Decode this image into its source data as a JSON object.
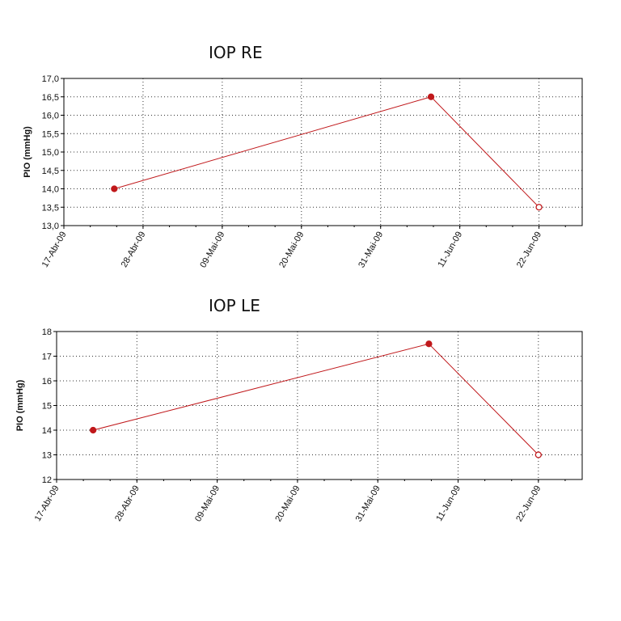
{
  "chart_data": [
    {
      "type": "line",
      "title": "IOP RE",
      "xlabel": "",
      "ylabel": "PIO (mmHg)",
      "ylim": [
        13.0,
        17.0
      ],
      "yticks": [
        "13,0",
        "13,5",
        "14,0",
        "14,5",
        "15,0",
        "15,5",
        "16,0",
        "16,5",
        "17,0"
      ],
      "xlim": [
        "2009-04-17",
        "2009-06-28"
      ],
      "xticks": [
        {
          "date": "2009-04-17",
          "label": "17-Abr-09"
        },
        {
          "date": "2009-04-28",
          "label": "28-Abr-09"
        },
        {
          "date": "2009-05-09",
          "label": "09-Mai-09"
        },
        {
          "date": "2009-05-20",
          "label": "20-Mai-09"
        },
        {
          "date": "2009-05-31",
          "label": "31-Mai-09"
        },
        {
          "date": "2009-06-11",
          "label": "11-Jun-09"
        },
        {
          "date": "2009-06-22",
          "label": "22-Jun-09"
        }
      ],
      "grid": true,
      "series": [
        {
          "color": "#c0181b",
          "points": [
            {
              "x": "2009-04-24",
              "y": 14.0,
              "filled": true
            },
            {
              "x": "2009-06-07",
              "y": 16.5,
              "filled": true
            },
            {
              "x": "2009-06-22",
              "y": 13.5,
              "filled": false
            }
          ]
        }
      ]
    },
    {
      "type": "line",
      "title": "IOP LE",
      "xlabel": "",
      "ylabel": "PIO (mmHg)",
      "ylim": [
        12,
        18
      ],
      "yticks": [
        "12",
        "13",
        "14",
        "15",
        "16",
        "17",
        "18"
      ],
      "xlim": [
        "2009-04-17",
        "2009-06-28"
      ],
      "xticks": [
        {
          "date": "2009-04-17",
          "label": "17-Abr-09"
        },
        {
          "date": "2009-04-28",
          "label": "28-Abr-09"
        },
        {
          "date": "2009-05-09",
          "label": "09-Mai-09"
        },
        {
          "date": "2009-05-20",
          "label": "20-Mai-09"
        },
        {
          "date": "2009-05-31",
          "label": "31-Mai-09"
        },
        {
          "date": "2009-06-11",
          "label": "11-Jun-09"
        },
        {
          "date": "2009-06-22",
          "label": "22-Jun-09"
        }
      ],
      "grid": true,
      "series": [
        {
          "color": "#c0181b",
          "points": [
            {
              "x": "2009-04-22",
              "y": 14,
              "filled": true
            },
            {
              "x": "2009-06-07",
              "y": 17.5,
              "filled": true
            },
            {
              "x": "2009-06-22",
              "y": 13,
              "filled": false
            }
          ]
        }
      ]
    }
  ]
}
